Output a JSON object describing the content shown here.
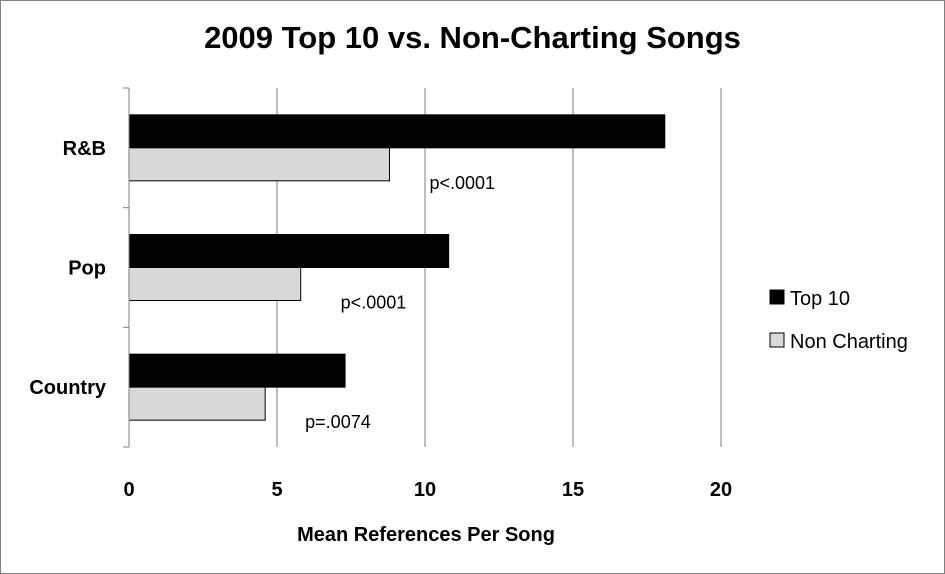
{
  "chart_data": {
    "type": "bar",
    "orientation": "horizontal",
    "title": "2009 Top 10 vs. Non-Charting Songs",
    "xlabel": "Mean References Per Song",
    "ylabel": "",
    "categories": [
      "R&B",
      "Pop",
      "Country"
    ],
    "series": [
      {
        "name": "Top 10",
        "values": [
          18.1,
          10.8,
          7.3
        ],
        "color": "#000000"
      },
      {
        "name": "Non Charting",
        "values": [
          8.8,
          5.8,
          4.6
        ],
        "color": "#d9d9d9"
      }
    ],
    "annotations": [
      "p<.0001",
      "p<.0001",
      "p=.0074"
    ],
    "xlim": [
      0,
      20
    ],
    "xticks": [
      "0",
      "5",
      "10",
      "15",
      "20"
    ],
    "grid": true,
    "legend_position": "right"
  }
}
